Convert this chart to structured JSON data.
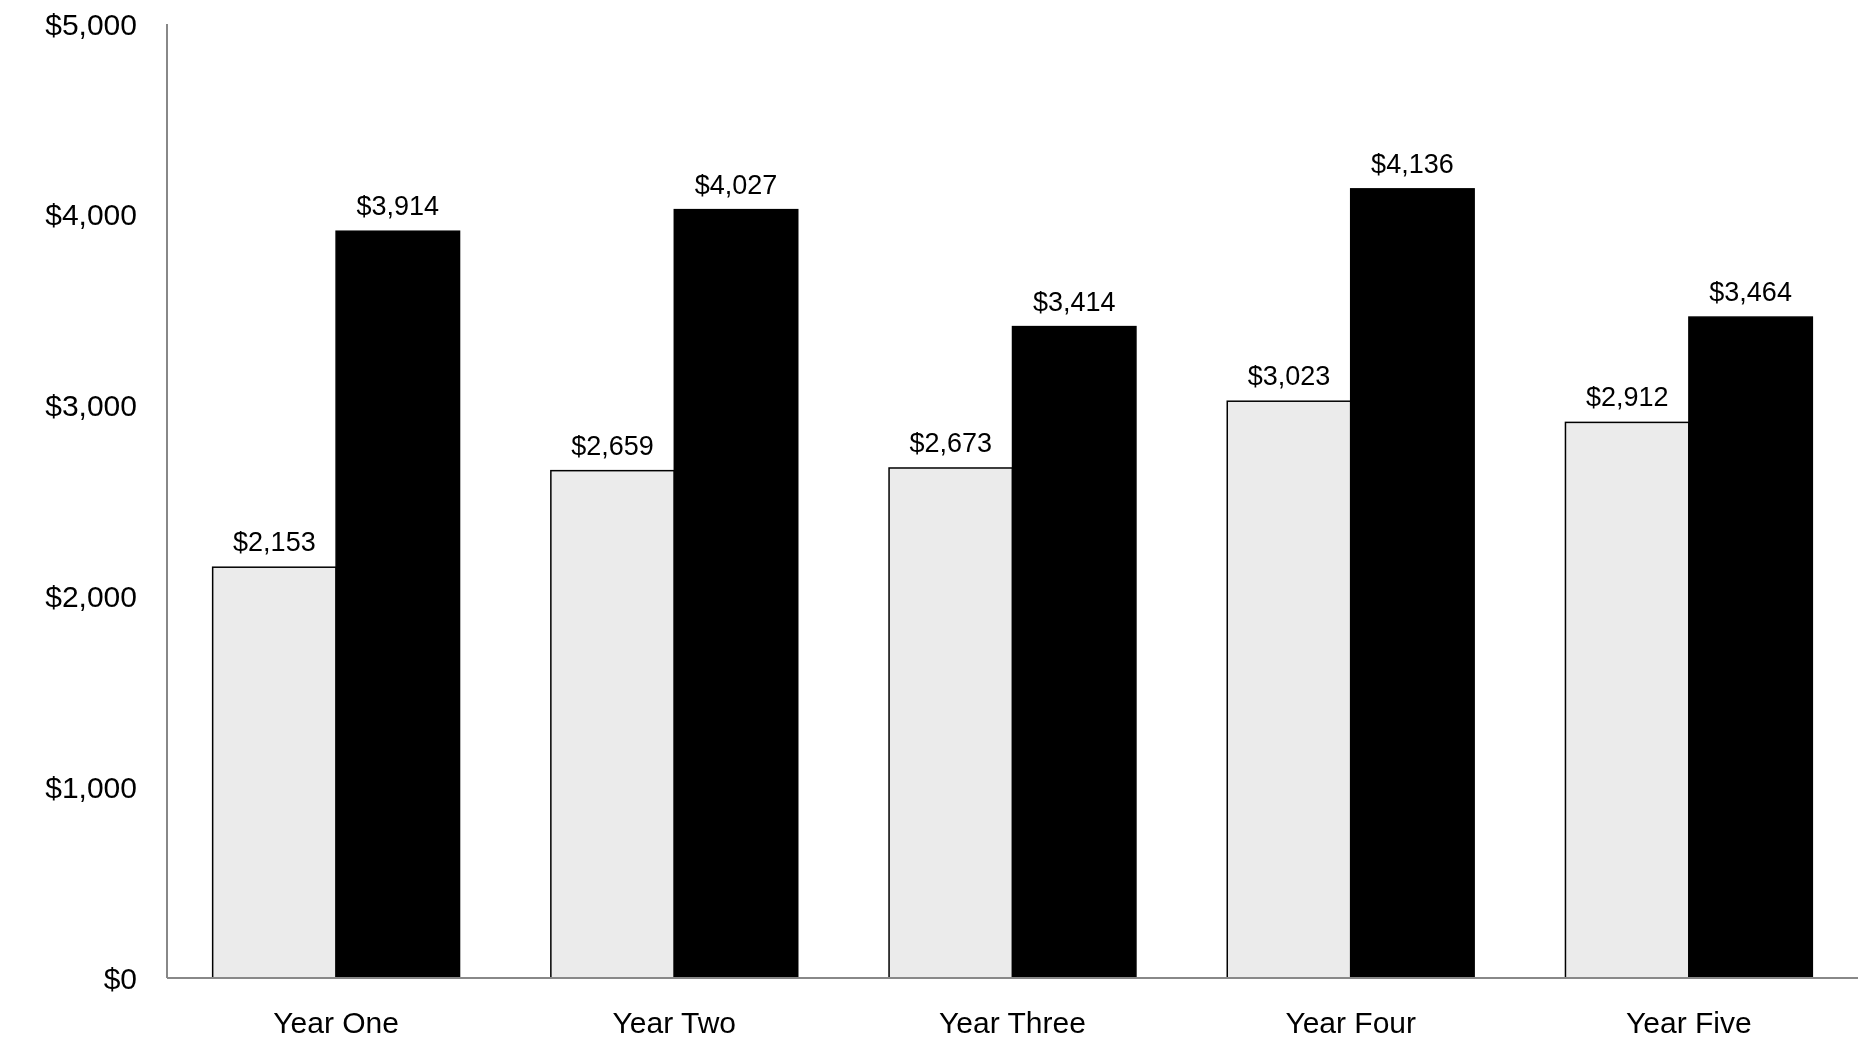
{
  "chart_data": {
    "type": "bar",
    "categories": [
      "Year One",
      "Year Two",
      "Year Three",
      "Year Four",
      "Year Five"
    ],
    "series": [
      {
        "color": "#ebebeb",
        "values": [
          2153,
          2659,
          2673,
          3023,
          2912
        ],
        "value_labels": [
          "$2,153",
          "$2,659",
          "$2,673",
          "$3,023",
          "$2,912"
        ]
      },
      {
        "color": "#000000",
        "values": [
          3914,
          4027,
          3414,
          4136,
          3464
        ],
        "value_labels": [
          "$3,914",
          "$4,027",
          "$3,414",
          "$4,136",
          "$3,464"
        ]
      }
    ],
    "ylim": [
      0,
      5000
    ],
    "yticks": [
      {
        "value": 0,
        "label": "$0"
      },
      {
        "value": 1000,
        "label": "$1,000"
      },
      {
        "value": 2000,
        "label": "$2,000"
      },
      {
        "value": 3000,
        "label": "$3,000"
      },
      {
        "value": 4000,
        "label": "$4,000"
      },
      {
        "value": 5000,
        "label": "$5,000"
      }
    ],
    "grid": false
  }
}
